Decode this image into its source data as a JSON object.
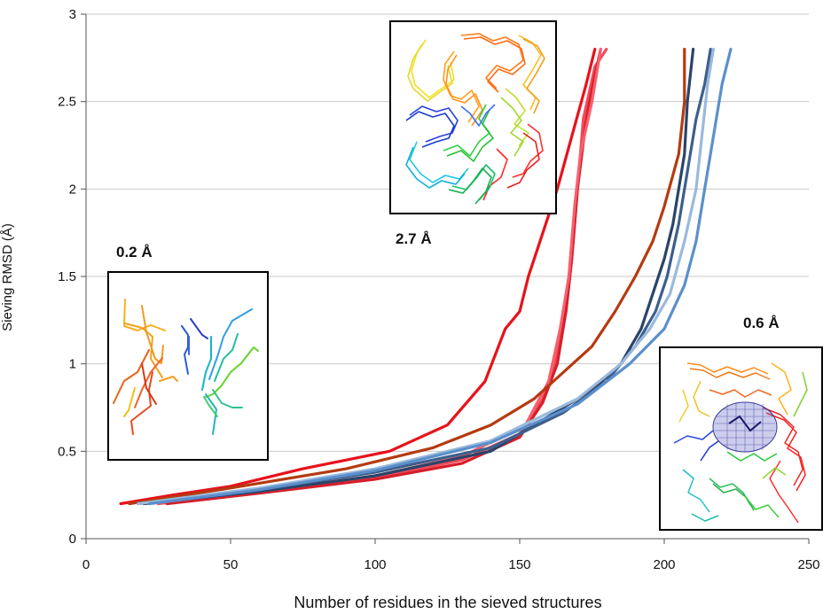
{
  "chart_data": {
    "type": "line",
    "xlabel": "Number of residues in the sieved structures",
    "ylabel": "Sieving RMSD (Å)",
    "xlim": [
      0,
      250
    ],
    "ylim": [
      0,
      3
    ],
    "x_ticks": [
      "0",
      "50",
      "100",
      "150",
      "200",
      "250"
    ],
    "y_ticks": [
      "0",
      "0.5",
      "1",
      "1.5",
      "2",
      "2.5",
      "3"
    ],
    "grid": "horizontal",
    "series": [
      {
        "color": "#e8111a",
        "points": [
          [
            12,
            0.2
          ],
          [
            30,
            0.25
          ],
          [
            50,
            0.3
          ],
          [
            75,
            0.4
          ],
          [
            105,
            0.5
          ],
          [
            125,
            0.65
          ],
          [
            138,
            0.9
          ],
          [
            145,
            1.2
          ],
          [
            150,
            1.3
          ],
          [
            153,
            1.5
          ],
          [
            158,
            1.75
          ],
          [
            163,
            2.0
          ],
          [
            168,
            2.3
          ],
          [
            173,
            2.6
          ],
          [
            176,
            2.8
          ]
        ]
      },
      {
        "color": "#f4495a",
        "points": [
          [
            25,
            0.2
          ],
          [
            60,
            0.27
          ],
          [
            100,
            0.35
          ],
          [
            130,
            0.45
          ],
          [
            150,
            0.6
          ],
          [
            158,
            0.8
          ],
          [
            162,
            1.0
          ],
          [
            166,
            1.3
          ],
          [
            168,
            1.6
          ],
          [
            170,
            2.0
          ],
          [
            172,
            2.4
          ],
          [
            176,
            2.7
          ],
          [
            180,
            2.8
          ]
        ]
      },
      {
        "color": "#d61e2b",
        "points": [
          [
            28,
            0.2
          ],
          [
            60,
            0.26
          ],
          [
            100,
            0.34
          ],
          [
            130,
            0.43
          ],
          [
            150,
            0.58
          ],
          [
            158,
            0.78
          ],
          [
            163,
            1.0
          ],
          [
            166,
            1.3
          ],
          [
            168,
            1.6
          ],
          [
            170,
            2.0
          ],
          [
            173,
            2.4
          ],
          [
            176,
            2.65
          ],
          [
            178,
            2.8
          ]
        ]
      },
      {
        "color": "#f7606d",
        "points": [
          [
            20,
            0.2
          ],
          [
            60,
            0.27
          ],
          [
            100,
            0.36
          ],
          [
            130,
            0.47
          ],
          [
            152,
            0.65
          ],
          [
            160,
            0.9
          ],
          [
            164,
            1.2
          ],
          [
            167,
            1.5
          ],
          [
            169,
            1.9
          ],
          [
            171,
            2.2
          ],
          [
            175,
            2.5
          ],
          [
            178,
            2.8
          ]
        ]
      },
      {
        "color": "#b53a10",
        "points": [
          [
            15,
            0.2
          ],
          [
            50,
            0.29
          ],
          [
            90,
            0.4
          ],
          [
            120,
            0.52
          ],
          [
            140,
            0.65
          ],
          [
            155,
            0.8
          ],
          [
            165,
            0.95
          ],
          [
            175,
            1.1
          ],
          [
            183,
            1.3
          ],
          [
            190,
            1.5
          ],
          [
            196,
            1.7
          ],
          [
            200,
            1.9
          ],
          [
            205,
            2.2
          ],
          [
            207,
            2.5
          ],
          [
            207,
            2.8
          ]
        ]
      },
      {
        "color": "#2a4468",
        "points": [
          [
            20,
            0.2
          ],
          [
            60,
            0.27
          ],
          [
            100,
            0.36
          ],
          [
            140,
            0.5
          ],
          [
            160,
            0.7
          ],
          [
            175,
            0.85
          ],
          [
            185,
            1.0
          ],
          [
            192,
            1.2
          ],
          [
            196,
            1.4
          ],
          [
            200,
            1.6
          ],
          [
            203,
            1.8
          ],
          [
            205,
            2.0
          ],
          [
            207,
            2.2
          ],
          [
            208,
            2.5
          ],
          [
            210,
            2.8
          ]
        ]
      },
      {
        "color": "#3d5f8c",
        "points": [
          [
            18,
            0.2
          ],
          [
            60,
            0.28
          ],
          [
            100,
            0.38
          ],
          [
            140,
            0.52
          ],
          [
            165,
            0.72
          ],
          [
            180,
            0.9
          ],
          [
            190,
            1.1
          ],
          [
            197,
            1.3
          ],
          [
            201,
            1.5
          ],
          [
            205,
            1.8
          ],
          [
            208,
            2.1
          ],
          [
            211,
            2.4
          ],
          [
            214,
            2.6
          ],
          [
            216,
            2.8
          ]
        ]
      },
      {
        "color": "#9ab9dd",
        "points": [
          [
            18,
            0.2
          ],
          [
            60,
            0.29
          ],
          [
            100,
            0.4
          ],
          [
            140,
            0.56
          ],
          [
            170,
            0.8
          ],
          [
            185,
            1.0
          ],
          [
            195,
            1.2
          ],
          [
            202,
            1.4
          ],
          [
            207,
            1.7
          ],
          [
            211,
            2.0
          ],
          [
            213,
            2.3
          ],
          [
            215,
            2.6
          ],
          [
            217,
            2.8
          ]
        ]
      },
      {
        "color": "#5b8fcc",
        "points": [
          [
            22,
            0.2
          ],
          [
            60,
            0.28
          ],
          [
            100,
            0.39
          ],
          [
            140,
            0.55
          ],
          [
            170,
            0.77
          ],
          [
            188,
            1.0
          ],
          [
            200,
            1.2
          ],
          [
            207,
            1.45
          ],
          [
            211,
            1.7
          ],
          [
            214,
            2.0
          ],
          [
            217,
            2.3
          ],
          [
            220,
            2.6
          ],
          [
            223,
            2.8
          ]
        ]
      }
    ],
    "insets": [
      {
        "label": "0.2 Å",
        "picture": "zoomed backbone fragments"
      },
      {
        "label": "2.7 Å",
        "picture": "full structure overlay"
      },
      {
        "label": "0.6 Å",
        "picture": "structure overlay with mesh core"
      }
    ]
  }
}
